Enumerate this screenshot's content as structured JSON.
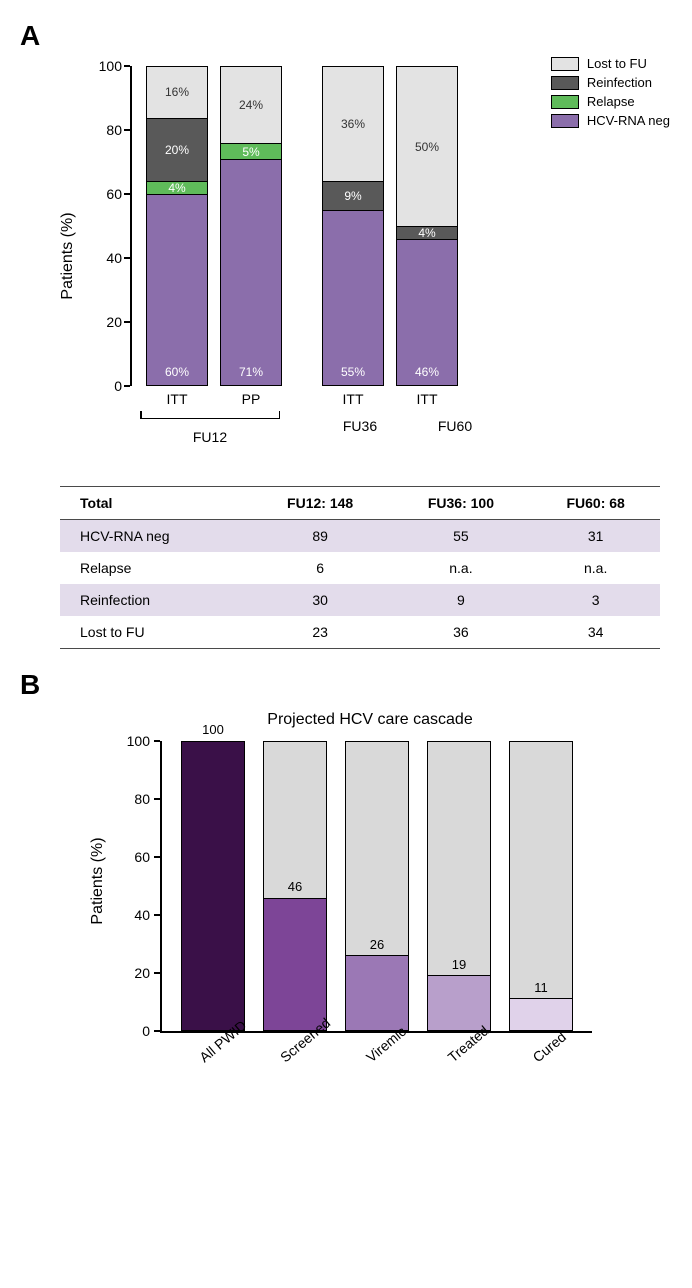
{
  "panelA": {
    "label": "A",
    "ylabel": "Patients (%)",
    "ylim": [
      0,
      100
    ],
    "ytick_step": 20,
    "colors": {
      "lost": "#e3e3e3",
      "reinf": "#595959",
      "relapse": "#5fbb5a",
      "neg": "#8b6eab"
    },
    "legend": [
      {
        "label": "Lost to FU",
        "key": "lost"
      },
      {
        "label": "Reinfection",
        "key": "reinf"
      },
      {
        "label": "Relapse",
        "key": "relapse"
      },
      {
        "label": "HCV-RNA neg",
        "key": "neg"
      }
    ],
    "bars": [
      {
        "xlabel": "ITT",
        "segments": [
          {
            "key": "lost",
            "pct": 16,
            "label": "16%",
            "textcolor": "#333"
          },
          {
            "key": "reinf",
            "pct": 20,
            "label": "20%",
            "textcolor": "#fff"
          },
          {
            "key": "relapse",
            "pct": 4,
            "label": "4%",
            "textcolor": "#fff"
          },
          {
            "key": "neg",
            "pct": 60,
            "label": "60%",
            "textcolor": "#fff",
            "valign": "bottom"
          }
        ]
      },
      {
        "xlabel": "PP",
        "segments": [
          {
            "key": "lost",
            "pct": 24,
            "label": "24%",
            "textcolor": "#333"
          },
          {
            "key": "relapse",
            "pct": 5,
            "label": "5%",
            "textcolor": "#fff"
          },
          {
            "key": "neg",
            "pct": 71,
            "label": "71%",
            "textcolor": "#fff",
            "valign": "bottom"
          }
        ]
      },
      {
        "xlabel": "ITT",
        "segments": [
          {
            "key": "lost",
            "pct": 36,
            "label": "36%",
            "textcolor": "#333"
          },
          {
            "key": "reinf",
            "pct": 9,
            "label": "9%",
            "textcolor": "#fff"
          },
          {
            "key": "neg",
            "pct": 55,
            "label": "55%",
            "textcolor": "#fff",
            "valign": "bottom"
          }
        ]
      },
      {
        "xlabel": "ITT",
        "segments": [
          {
            "key": "lost",
            "pct": 50,
            "label": "50%",
            "textcolor": "#333"
          },
          {
            "key": "reinf",
            "pct": 4,
            "label": "4%",
            "textcolor": "#fff"
          },
          {
            "key": "neg",
            "pct": 46,
            "label": "46%",
            "textcolor": "#fff",
            "valign": "bottom"
          }
        ]
      }
    ],
    "group_labels": {
      "g1": "FU12",
      "g2": "FU36",
      "g3": "FU60"
    }
  },
  "tableA": {
    "header": {
      "c0": "Total",
      "c1": "FU12: 148",
      "c2": "FU36: 100",
      "c3": "FU60: 68"
    },
    "rows": [
      {
        "shade": true,
        "c0": "HCV-RNA neg",
        "c1": "89",
        "c2": "55",
        "c3": "31"
      },
      {
        "shade": false,
        "c0": "Relapse",
        "c1": "6",
        "c2": "n.a.",
        "c3": "n.a."
      },
      {
        "shade": true,
        "c0": "Reinfection",
        "c1": "30",
        "c2": "9",
        "c3": "3"
      },
      {
        "shade": false,
        "c0": "Lost to FU",
        "c1": "23",
        "c2": "36",
        "c3": "34"
      }
    ]
  },
  "panelB": {
    "label": "B",
    "title": "Projected HCV care cascade",
    "ylabel": "Patients (%)",
    "ylim": [
      0,
      100
    ],
    "ytick_step": 20,
    "bg_color": "#d9d9d9",
    "bars": [
      {
        "xlabel": "All PWID",
        "value": 100,
        "color": "#3a1048"
      },
      {
        "xlabel": "Screened",
        "value": 46,
        "color": "#7d4597"
      },
      {
        "xlabel": "Viremic",
        "value": 26,
        "color": "#9b78b5"
      },
      {
        "xlabel": "Treated",
        "value": 19,
        "color": "#b89fcb"
      },
      {
        "xlabel": "Cured",
        "value": 11,
        "color": "#e0d2ea"
      }
    ]
  }
}
